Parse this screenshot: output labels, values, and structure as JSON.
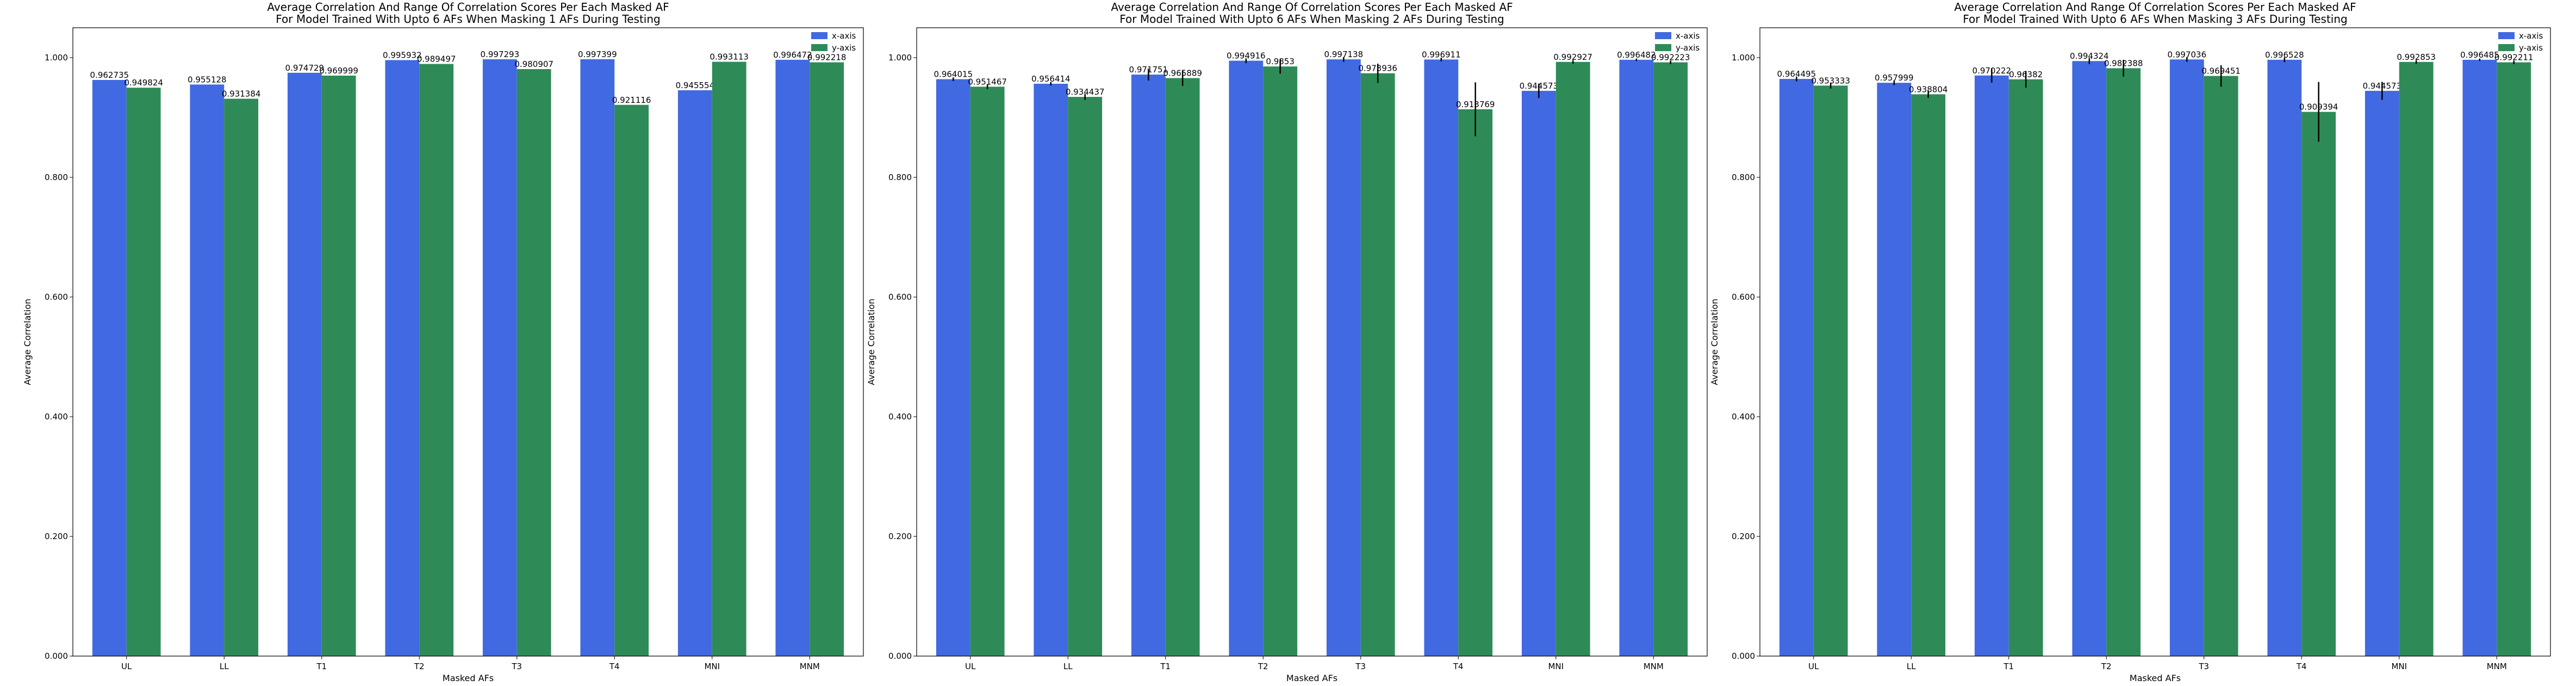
{
  "colors": {
    "x_axis": "#4169e1",
    "y_axis": "#2e8b57",
    "error_bar": "#000000",
    "background": "#ffffff"
  },
  "chart_data": [
    {
      "type": "bar",
      "title": "Average Correlation And Range Of Correlation Scores Per Each Masked AF",
      "subtitle": "For Model Trained With Upto 6 AFs When Masking 1 AFs During Testing",
      "xlabel": "Masked AFs",
      "ylabel": "Average Correlation",
      "ylim": [
        0,
        1.05
      ],
      "yticks": [
        "0.000",
        "0.200",
        "0.400",
        "0.600",
        "0.800",
        "1.000"
      ],
      "categories": [
        "UL",
        "LL",
        "T1",
        "T2",
        "T3",
        "T4",
        "MNI",
        "MNM"
      ],
      "legend": "top-right",
      "series": [
        {
          "name": "x-axis",
          "values": [
            0.962735,
            0.955128,
            0.974729,
            0.995932,
            0.997293,
            0.997399,
            0.945554,
            0.996472
          ],
          "labels": [
            "0.962735",
            "0.955128",
            "0.974729",
            "0.995932",
            "0.997293",
            "0.997399",
            "0.945554",
            "0.996472"
          ],
          "err": [
            0,
            0,
            0,
            0,
            0,
            0,
            0,
            0
          ]
        },
        {
          "name": "y-axis",
          "values": [
            0.949824,
            0.931384,
            0.969999,
            0.989497,
            0.980907,
            0.921116,
            0.993113,
            0.992218
          ],
          "labels": [
            "0.949824",
            "0.931384",
            "0.969999",
            "0.989497",
            "0.980907",
            "0.921116",
            "0.993113",
            "0.992218"
          ],
          "err": [
            0,
            0,
            0,
            0,
            0,
            0,
            0,
            0
          ]
        }
      ]
    },
    {
      "type": "bar",
      "title": "Average Correlation And Range Of Correlation Scores Per Each Masked AF",
      "subtitle": "For Model Trained With Upto 6 AFs When Masking 2 AFs During Testing",
      "xlabel": "Masked AFs",
      "ylabel": "Average Correlation",
      "ylim": [
        0,
        1.05
      ],
      "yticks": [
        "0.000",
        "0.200",
        "0.400",
        "0.600",
        "0.800",
        "1.000"
      ],
      "categories": [
        "UL",
        "LL",
        "T1",
        "T2",
        "T3",
        "T4",
        "MNI",
        "MNM"
      ],
      "legend": "top-right",
      "series": [
        {
          "name": "x-axis",
          "values": [
            0.964015,
            0.956414,
            0.971751,
            0.994916,
            0.997138,
            0.996911,
            0.944573,
            0.996482
          ],
          "labels": [
            "0.964015",
            "0.956414",
            "0.971751",
            "0.994916",
            "0.997138",
            "0.996911",
            "0.944573",
            "0.996482"
          ],
          "err": [
            0.003,
            0.003,
            0.01,
            0.004,
            0.004,
            0.003,
            0.012,
            0.002
          ]
        },
        {
          "name": "y-axis",
          "values": [
            0.951467,
            0.934437,
            0.965889,
            0.9853,
            0.973936,
            0.913769,
            0.992927,
            0.992223
          ],
          "labels": [
            "0.951467",
            "0.934437",
            "0.965889",
            "0.9853",
            "0.973936",
            "0.913769",
            "0.992927",
            "0.992223"
          ],
          "err": [
            0.004,
            0.005,
            0.013,
            0.012,
            0.016,
            0.045,
            0.003,
            0.003
          ]
        }
      ]
    },
    {
      "type": "bar",
      "title": "Average Correlation And Range Of Correlation Scores Per Each Masked AF",
      "subtitle": "For Model Trained With Upto 6 AFs When Masking 3 AFs During Testing",
      "xlabel": "Masked AFs",
      "ylabel": "Average Correlation",
      "ylim": [
        0,
        1.05
      ],
      "yticks": [
        "0.000",
        "0.200",
        "0.400",
        "0.600",
        "0.800",
        "1.000"
      ],
      "categories": [
        "UL",
        "LL",
        "T1",
        "T2",
        "T3",
        "T4",
        "MNI",
        "MNM"
      ],
      "legend": "top-right",
      "series": [
        {
          "name": "x-axis",
          "values": [
            0.964495,
            0.957999,
            0.970222,
            0.994324,
            0.997036,
            0.996528,
            0.944573,
            0.996485
          ],
          "labels": [
            "0.964495",
            "0.957999",
            "0.970222",
            "0.994324",
            "0.997036",
            "0.996528",
            "0.944573",
            "0.996485"
          ],
          "err": [
            0.004,
            0.004,
            0.012,
            0.005,
            0.004,
            0.004,
            0.015,
            0.002
          ]
        },
        {
          "name": "y-axis",
          "values": [
            0.953333,
            0.938804,
            0.96382,
            0.982388,
            0.969451,
            0.909394,
            0.992853,
            0.992211
          ],
          "labels": [
            "0.953333",
            "0.938804",
            "0.96382",
            "0.982388",
            "0.969451",
            "0.909394",
            "0.992853",
            "0.992211"
          ],
          "err": [
            0.005,
            0.006,
            0.014,
            0.014,
            0.018,
            0.05,
            0.003,
            0.003
          ]
        }
      ]
    }
  ]
}
